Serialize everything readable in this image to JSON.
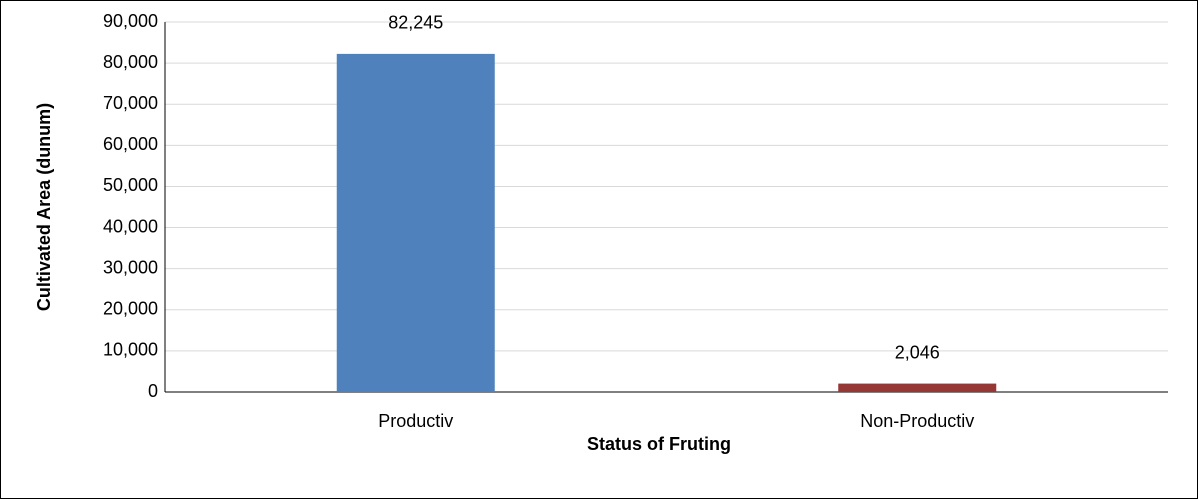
{
  "chart_data": {
    "type": "bar",
    "x_label": "Status of Fruting",
    "y_label": "Cultivated Area (dunum)",
    "categories": [
      "Productiv",
      "Non-Productiv"
    ],
    "values": [
      82245,
      2046
    ],
    "value_labels": [
      "82,245",
      "2,046"
    ],
    "colors": [
      "#4f81bd",
      "#953735"
    ],
    "ylim": [
      0,
      90000
    ],
    "yticks": [
      0,
      {
        "value": 10000,
        "label": "10,000"
      },
      {
        "value": 20000,
        "label": "20,000"
      },
      {
        "value": 30000,
        "label": "30,000"
      },
      {
        "value": 40000,
        "label": "40,000"
      },
      {
        "value": 50000,
        "label": "50,000"
      },
      {
        "value": 60000,
        "label": "60,000"
      },
      {
        "value": 70000,
        "label": "70,000"
      },
      {
        "value": 80000,
        "label": "80,000"
      },
      {
        "value": 90000,
        "label": "90,000"
      }
    ],
    "grid": true
  }
}
